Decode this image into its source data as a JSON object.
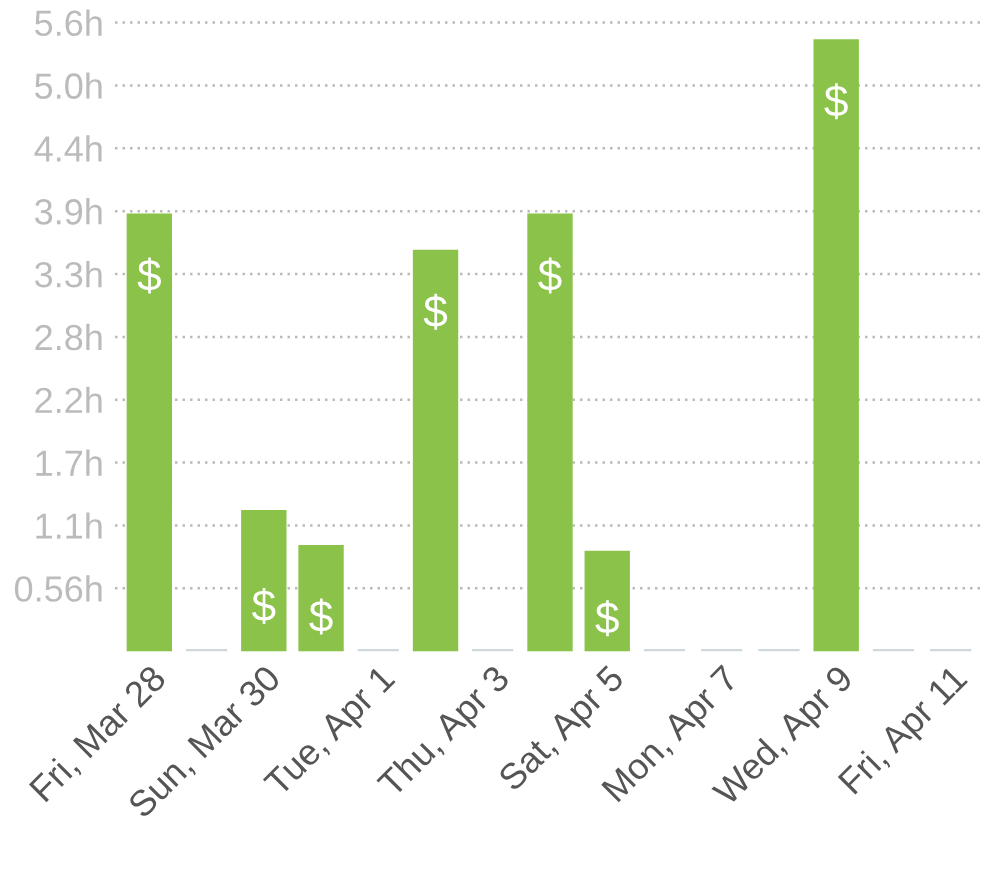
{
  "chart_data": {
    "type": "bar",
    "categories": [
      "Fri, Mar 28",
      null,
      "Sun, Mar 30",
      null,
      "Tue, Apr 1",
      null,
      "Thu, Apr 3",
      null,
      "Sat, Apr 5",
      null,
      "Mon, Apr 7",
      null,
      "Wed, Apr 9",
      null,
      "Fri, Apr 11"
    ],
    "values": [
      3.85,
      0,
      1.23,
      0.92,
      0,
      3.53,
      0,
      3.85,
      0.87,
      0,
      0,
      0,
      5.39,
      0,
      0
    ],
    "colors": [
      "#8bc34a",
      "#cfd8dc",
      "#8bc34a",
      "#8bc34a",
      "#cfd8dc",
      "#8bc34a",
      "#cfd8dc",
      "#8bc34a",
      "#8bc34a",
      "#cfd8dc",
      "#cfd8dc",
      "#cfd8dc",
      "#8bc34a",
      "#cfd8dc",
      "#cfd8dc"
    ],
    "value_labels": [
      "$",
      null,
      "$",
      "$",
      null,
      "$",
      null,
      "$",
      "$",
      null,
      null,
      null,
      "$",
      null,
      null
    ],
    "ylim": [
      0,
      5.6
    ],
    "yticks": [
      {
        "value": 0.5556,
        "label": "0.56h"
      },
      {
        "value": 1.1111,
        "label": "1.1h"
      },
      {
        "value": 1.6667,
        "label": "1.7h"
      },
      {
        "value": 2.2222,
        "label": "2.2h"
      },
      {
        "value": 2.7778,
        "label": "2.8h"
      },
      {
        "value": 3.3333,
        "label": "3.3h"
      },
      {
        "value": 3.8889,
        "label": "3.9h"
      },
      {
        "value": 4.4444,
        "label": "4.4h"
      },
      {
        "value": 5.0,
        "label": "5.0h"
      },
      {
        "value": 5.5556,
        "label": "5.6h"
      }
    ],
    "grid": "y"
  }
}
